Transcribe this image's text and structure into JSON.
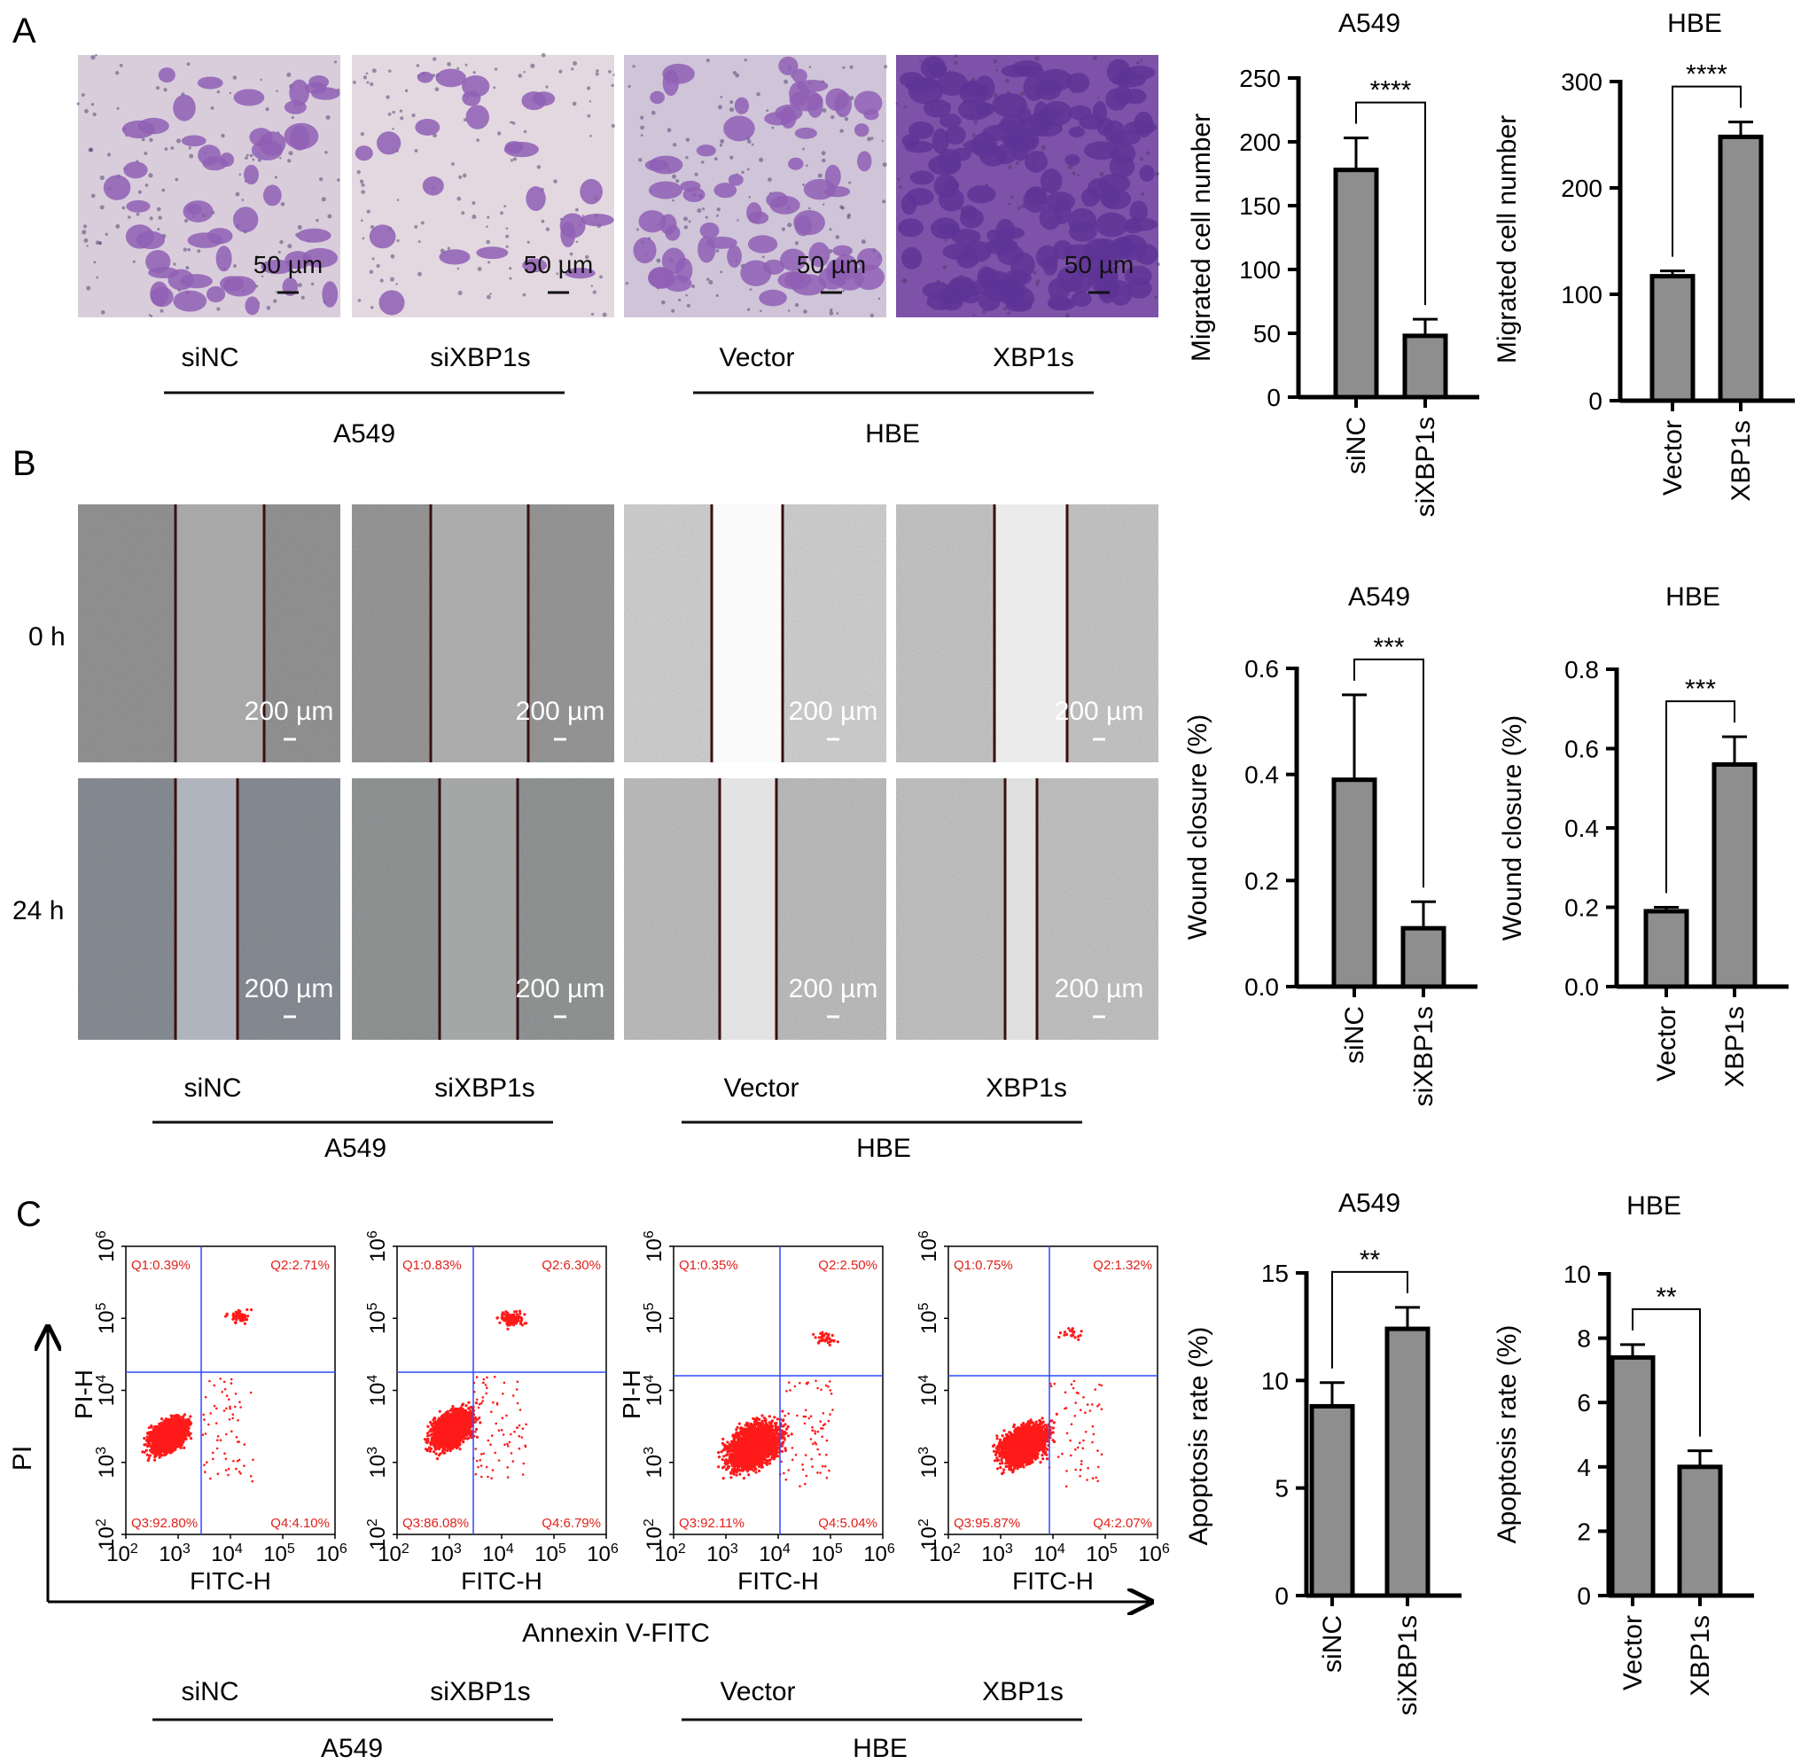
{
  "panels": {
    "A": {
      "letter": "A",
      "images": [
        {
          "scale": "50 µm"
        },
        {
          "scale": "50 µm"
        },
        {
          "scale": "50 µm"
        },
        {
          "scale": "50 µm"
        }
      ],
      "conditions": [
        "siNC",
        "siXBP1s",
        "Vector",
        "XBP1s"
      ],
      "groups": [
        "A549",
        "HBE"
      ]
    },
    "B": {
      "letter": "B",
      "row_labels": [
        "0 h",
        "24 h"
      ],
      "scale": "200 µm",
      "conditions": [
        "siNC",
        "siXBP1s",
        "Vector",
        "XBP1s"
      ],
      "groups": [
        "A549",
        "HBE"
      ]
    },
    "C": {
      "letter": "C",
      "y_axis_big": "PI",
      "x_axis_big": "Annexin V-FITC",
      "plot_y_label": "PI-H",
      "plot_x_label": "FITC-H",
      "tick_base": "10",
      "tick_exponents": [
        "2",
        "3",
        "4",
        "5",
        "6"
      ],
      "flow": [
        {
          "q1": "Q1:0.39%",
          "q2": "Q2:2.71%",
          "q3": "Q3:92.80%",
          "q4": "Q4:4.10%"
        },
        {
          "q1": "Q1:0.83%",
          "q2": "Q2:6.30%",
          "q3": "Q3:86.08%",
          "q4": "Q4:6.79%"
        },
        {
          "q1": "Q1:0.35%",
          "q2": "Q2:2.50%",
          "q3": "Q3:92.11%",
          "q4": "Q4:5.04%"
        },
        {
          "q1": "Q1:0.75%",
          "q2": "Q2:1.32%",
          "q3": "Q3:95.87%",
          "q4": "Q4:2.07%"
        }
      ],
      "conditions": [
        "siNC",
        "siXBP1s",
        "Vector",
        "XBP1s"
      ],
      "groups": [
        "A549",
        "HBE"
      ]
    }
  },
  "chart_data": [
    {
      "type": "bar",
      "title": "A549",
      "ylabel": "Migrated cell number",
      "categories": [
        "siNC",
        "siXBP1s"
      ],
      "values": [
        178,
        48
      ],
      "errors": [
        25,
        13
      ],
      "ylim": [
        0,
        250
      ],
      "yticks": [
        "0",
        "50",
        "100",
        "150",
        "200",
        "250"
      ],
      "significance": "****"
    },
    {
      "type": "bar",
      "title": "HBE",
      "ylabel": "Migrated cell number",
      "categories": [
        "Vector",
        "XBP1s"
      ],
      "values": [
        117,
        248
      ],
      "errors": [
        5,
        14
      ],
      "ylim": [
        0,
        300
      ],
      "yticks": [
        "0",
        "100",
        "200",
        "300"
      ],
      "significance": "****"
    },
    {
      "type": "bar",
      "title": "A549",
      "ylabel": "Wound closure (%)",
      "categories": [
        "siNC",
        "siXBP1s"
      ],
      "values": [
        0.39,
        0.11
      ],
      "errors": [
        0.16,
        0.05
      ],
      "ylim": [
        0,
        0.6
      ],
      "yticks": [
        "0.0",
        "0.2",
        "0.4",
        "0.6"
      ],
      "significance": "***"
    },
    {
      "type": "bar",
      "title": "HBE",
      "ylabel": "Wound closure (%)",
      "categories": [
        "Vector",
        "XBP1s"
      ],
      "values": [
        0.19,
        0.56
      ],
      "errors": [
        0.01,
        0.07
      ],
      "ylim": [
        0,
        0.8
      ],
      "yticks": [
        "0.0",
        "0.2",
        "0.4",
        "0.6",
        "0.8"
      ],
      "significance": "***"
    },
    {
      "type": "bar",
      "title": "A549",
      "ylabel": "Apoptosis rate (%)",
      "categories": [
        "siNC",
        "siXBP1s"
      ],
      "values": [
        8.8,
        12.4
      ],
      "errors": [
        1.1,
        1.0
      ],
      "ylim": [
        0,
        15
      ],
      "yticks": [
        "0",
        "5",
        "10",
        "15"
      ],
      "significance": "**"
    },
    {
      "type": "bar",
      "title": "HBE",
      "ylabel": "Apoptosis rate (%)",
      "categories": [
        "Vector",
        "XBP1s"
      ],
      "values": [
        7.4,
        4.0
      ],
      "errors": [
        0.4,
        0.5
      ],
      "ylim": [
        0,
        10
      ],
      "yticks": [
        "0",
        "2",
        "4",
        "6",
        "8",
        "10"
      ],
      "significance": "**"
    }
  ],
  "colors": {
    "bar_fill": "#8e8e8e",
    "crystal_violet": "#8f5fb5",
    "crystal_violet_bg": "#d9cddc",
    "flow_dot": "#ff1a1a",
    "gate_line": "#2d4cff",
    "wound_line": "#3a1010"
  }
}
